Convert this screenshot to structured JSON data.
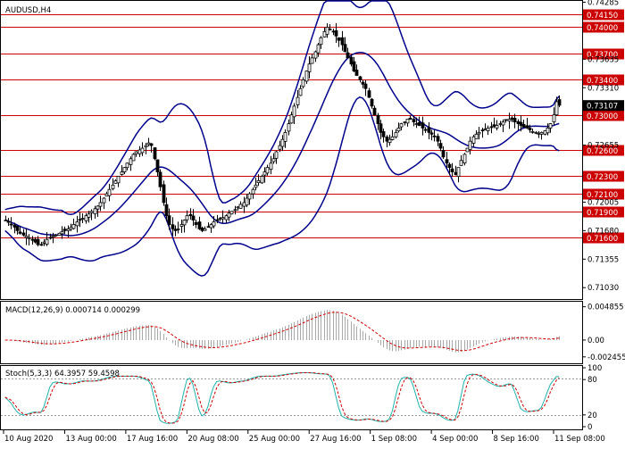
{
  "symbol_label": "AUDUSD,H4",
  "macd_label": "MACD(12,26,9) 0.000714 0.000299",
  "stoch_label": "Stoch(5,3,3) 64.3957 59.4598",
  "colors": {
    "candle": "#000000",
    "bollinger": "#00008b",
    "level_line": "#cc0000",
    "level_badge": "#cc0000",
    "price_badge": "#000000",
    "macd_hist": "#a9a9a9",
    "macd_signal": "#cc0000",
    "stoch_main": "#20b2aa",
    "stoch_signal": "#cc0000"
  },
  "chart_data": [
    {
      "type": "candlestick",
      "panel": "price",
      "title": "AUDUSD,H4",
      "y_range": [
        0.709,
        0.743
      ],
      "y_ticks": [
        "0.74285",
        "0.73635",
        "0.73310",
        "0.72655",
        "0.72005",
        "0.71680",
        "0.71355",
        "0.71030"
      ],
      "current_price": "0.73107",
      "horizontal_levels": [
        "0.74150",
        "0.74000",
        "0.73700",
        "0.73400",
        "0.73000",
        "0.72600",
        "0.72300",
        "0.72100",
        "0.71900",
        "0.71600"
      ],
      "x_tick_labels": [
        "10 Aug 2020",
        "13 Aug 00:00",
        "17 Aug 16:00",
        "20 Aug 08:00",
        "25 Aug 00:00",
        "27 Aug 16:00",
        "1 Sep 08:00",
        "4 Sep 00:00",
        "8 Sep 16:00",
        "11 Sep 08:00"
      ],
      "close_path": [
        0.718,
        0.7178,
        0.7175,
        0.7172,
        0.7168,
        0.7165,
        0.7163,
        0.7162,
        0.716,
        0.7157,
        0.7155,
        0.7152,
        0.7152,
        0.7155,
        0.7158,
        0.716,
        0.7162,
        0.7163,
        0.7165,
        0.7167,
        0.7168,
        0.717,
        0.7172,
        0.7175,
        0.7178,
        0.718,
        0.7182,
        0.7185,
        0.7187,
        0.719,
        0.7193,
        0.7196,
        0.72,
        0.7205,
        0.721,
        0.7215,
        0.722,
        0.7225,
        0.723,
        0.7235,
        0.724,
        0.7245,
        0.725,
        0.7255,
        0.7258,
        0.726,
        0.7262,
        0.7265,
        0.7268,
        0.7265,
        0.725,
        0.7235,
        0.7218,
        0.72,
        0.7185,
        0.7175,
        0.717,
        0.7168,
        0.717,
        0.7175,
        0.718,
        0.7185,
        0.7185,
        0.718,
        0.7175,
        0.717,
        0.7168,
        0.717,
        0.7172,
        0.7175,
        0.7178,
        0.718,
        0.7182,
        0.7183,
        0.7185,
        0.7188,
        0.719,
        0.7192,
        0.7195,
        0.7198,
        0.72,
        0.7205,
        0.721,
        0.7215,
        0.722,
        0.7225,
        0.723,
        0.7235,
        0.724,
        0.7245,
        0.725,
        0.7258,
        0.7265,
        0.7272,
        0.728,
        0.729,
        0.73,
        0.731,
        0.732,
        0.733,
        0.734,
        0.735,
        0.7358,
        0.7365,
        0.7372,
        0.738,
        0.7388,
        0.7395,
        0.74,
        0.7398,
        0.7395,
        0.739,
        0.7385,
        0.738,
        0.7372,
        0.7365,
        0.7358,
        0.735,
        0.7345,
        0.734,
        0.7335,
        0.733,
        0.732,
        0.731,
        0.73,
        0.729,
        0.728,
        0.7275,
        0.727,
        0.7272,
        0.7275,
        0.728,
        0.7285,
        0.729,
        0.7292,
        0.7295,
        0.7295,
        0.7292,
        0.729,
        0.7288,
        0.7285,
        0.7283,
        0.728,
        0.7278,
        0.7275,
        0.727,
        0.7262,
        0.7252,
        0.7245,
        0.724,
        0.7235,
        0.7232,
        0.724,
        0.7248,
        0.7255,
        0.7262,
        0.727,
        0.7275,
        0.7278,
        0.728,
        0.7282,
        0.7284,
        0.7285,
        0.7286,
        0.7287,
        0.7288,
        0.729,
        0.7292,
        0.7294,
        0.7295,
        0.7295,
        0.7292,
        0.729,
        0.7288,
        0.7286,
        0.7285,
        0.7283,
        0.7281,
        0.728,
        0.7279,
        0.728,
        0.7282,
        0.7285,
        0.729,
        0.73,
        0.7315,
        0.7311
      ]
    },
    {
      "type": "histogram_line",
      "panel": "macd",
      "title": "MACD(12,26,9) 0.000714 0.000299",
      "y_ticks": [
        "0.004855",
        "0.00",
        "-0.002455"
      ],
      "y_range": [
        -0.003,
        0.0052
      ]
    },
    {
      "type": "line",
      "panel": "stochastic",
      "title": "Stoch(5,3,3) 64.3957 59.4598",
      "y_ticks": [
        "100",
        "80",
        "20",
        "0"
      ],
      "y_range": [
        0,
        100
      ],
      "reference_levels": [
        80,
        20
      ]
    }
  ]
}
